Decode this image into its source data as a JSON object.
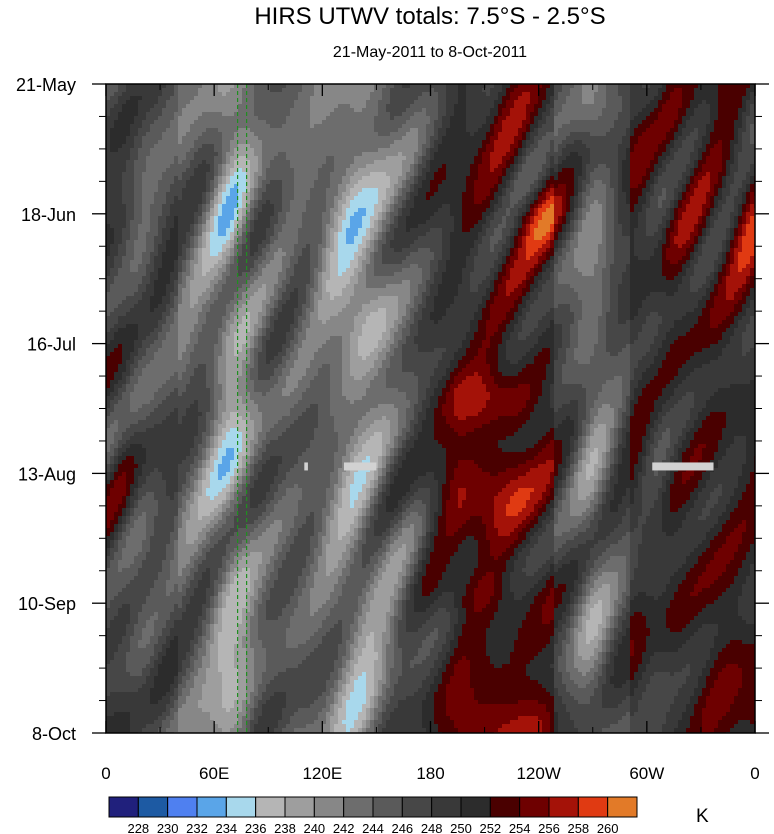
{
  "chart_data": {
    "type": "heatmap",
    "title": "HIRS UTWV totals: 7.5°S - 2.5°S",
    "subtitle": "21-May-2011 to 8-Oct-2011",
    "xlabel": "",
    "ylabel": "",
    "x_ticks": [
      {
        "label": "0",
        "lon": 0
      },
      {
        "label": "60E",
        "lon": 60
      },
      {
        "label": "120E",
        "lon": 120
      },
      {
        "label": "180",
        "lon": 180
      },
      {
        "label": "120W",
        "lon": 240
      },
      {
        "label": "60W",
        "lon": 300
      },
      {
        "label": "0",
        "lon": 360
      }
    ],
    "xlim": [
      0,
      360
    ],
    "y_ticks": [
      {
        "label": "21-May",
        "day": 0
      },
      {
        "label": "18-Jun",
        "day": 28
      },
      {
        "label": "16-Jul",
        "day": 56
      },
      {
        "label": "13-Aug",
        "day": 84
      },
      {
        "label": "10-Sep",
        "day": 112
      },
      {
        "label": "8-Oct",
        "day": 140
      }
    ],
    "ylim_days": [
      0,
      140
    ],
    "reference_lines_lon": [
      73,
      78
    ],
    "missing_segments": [
      {
        "lon": [
          110,
          112
        ],
        "day": 82.5
      },
      {
        "lon": [
          132,
          150
        ],
        "day": 82.5
      },
      {
        "lon": [
          303,
          337
        ],
        "day": 82.5
      }
    ],
    "colorbar": {
      "unit": "K",
      "levels": [
        228,
        230,
        232,
        234,
        236,
        238,
        240,
        242,
        244,
        246,
        248,
        250,
        252,
        254,
        256,
        258,
        260
      ],
      "colors": [
        "#20207c",
        "#1d5aa3",
        "#4f80f0",
        "#5aa5e8",
        "#a8d8ec",
        "#b5b5b5",
        "#9e9e9e",
        "#878787",
        "#6d6d6d",
        "#5a5a5a",
        "#474747",
        "#393939",
        "#2c2c2c",
        "#4a0000",
        "#6e0000",
        "#a41208",
        "#e03a12",
        "#e27a28"
      ]
    }
  }
}
